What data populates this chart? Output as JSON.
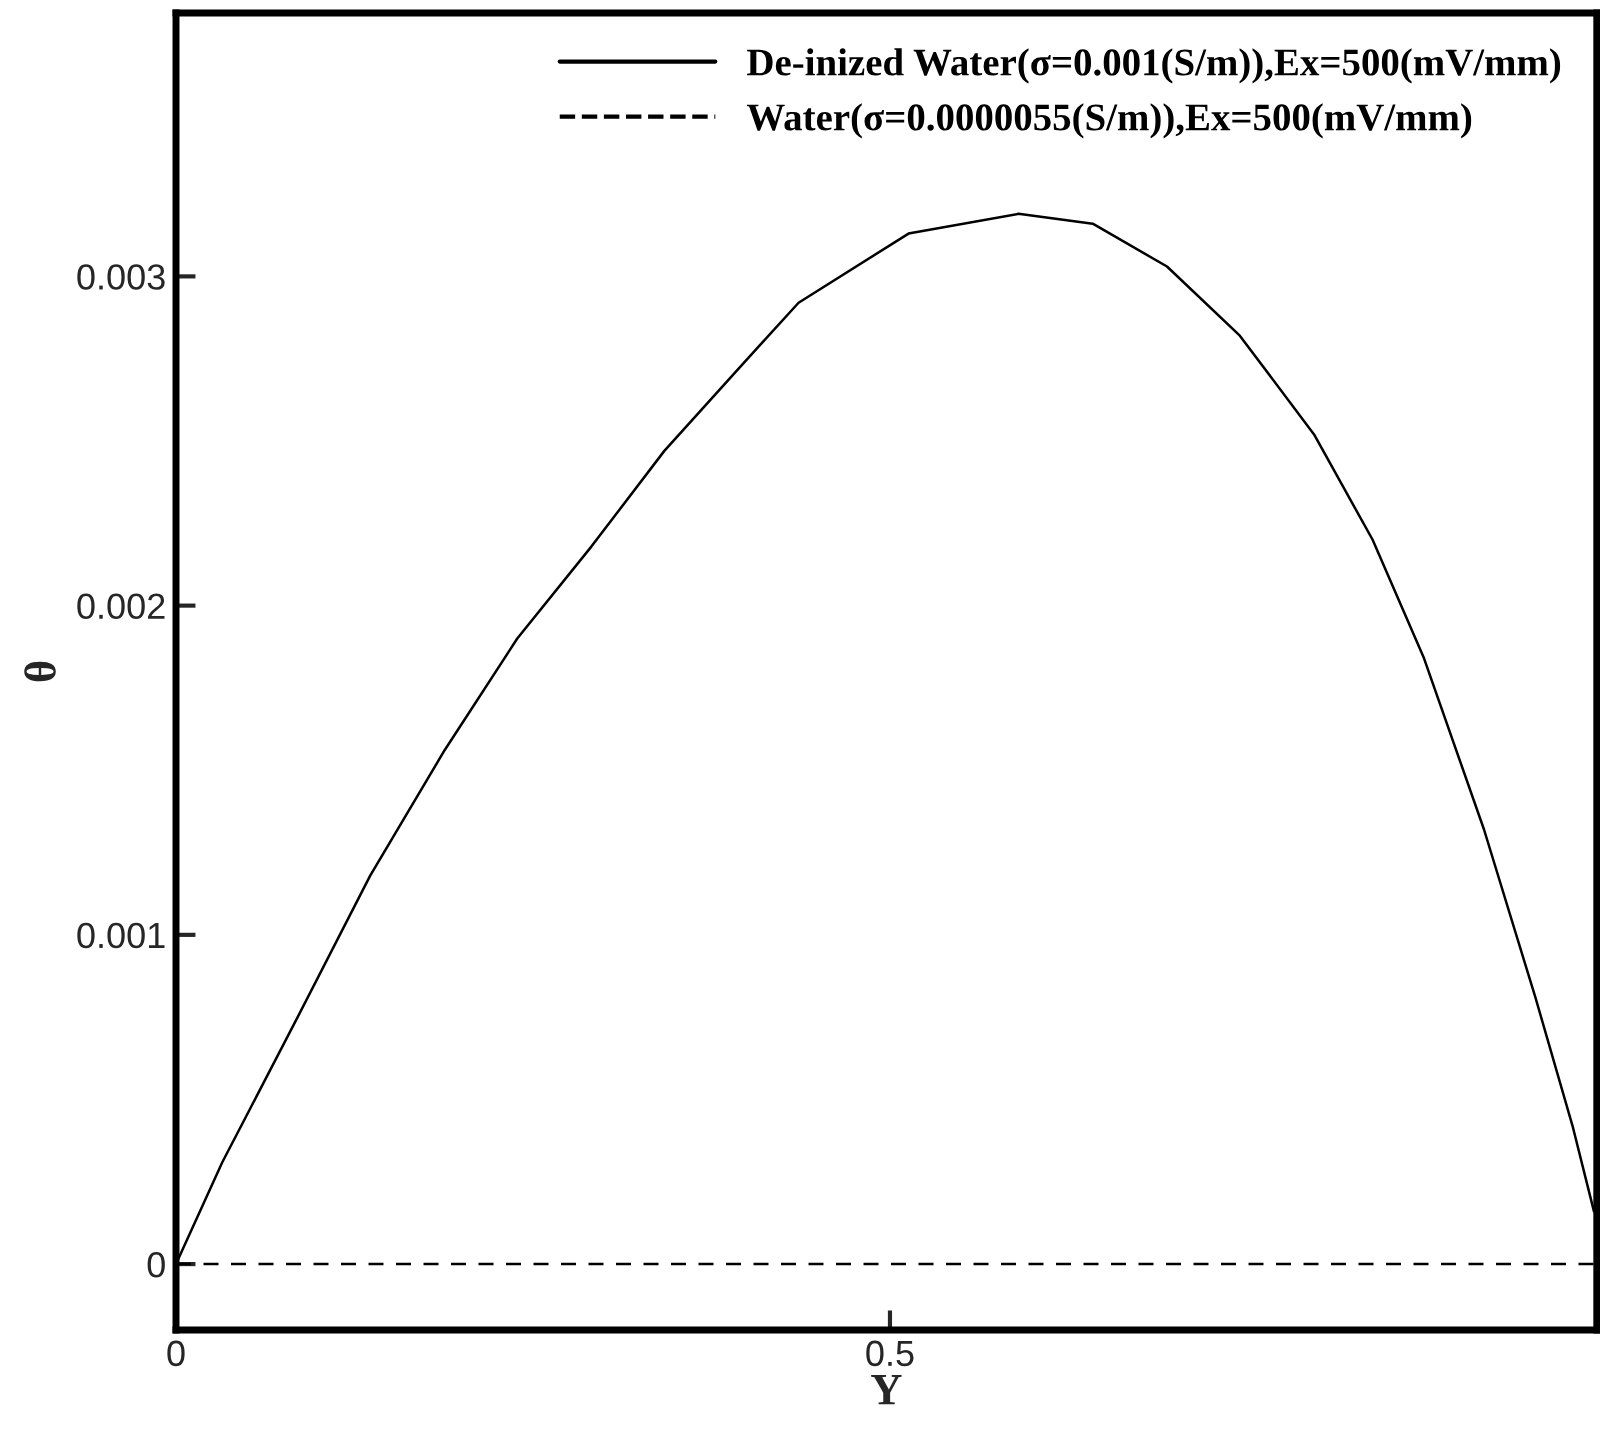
{
  "chart_data": {
    "type": "line",
    "xlabel": "Y",
    "ylabel": "θ",
    "xlim": [
      0,
      0.995
    ],
    "ylim": [
      -0.0002,
      0.0038
    ],
    "xticks": [
      0,
      0.5
    ],
    "yticks": [
      0,
      0.001,
      0.002,
      0.003
    ],
    "grid": false,
    "legend": "top right",
    "marker": "none",
    "series": [
      {
        "name": "De-inized Water(σ=0.001(S/m)),Ex=500(mV/mm)",
        "color": "#000000",
        "line_style": "solid",
        "x": [
          0,
          0.0325,
          0.084,
          0.136,
          0.188,
          0.239,
          0.291,
          0.342,
          0.394,
          0.436,
          0.513,
          0.59,
          0.642,
          0.694,
          0.745,
          0.797,
          0.838,
          0.874,
          0.916,
          0.952,
          0.978,
          0.993
        ],
        "values": [
          0,
          0.00031,
          0.00074,
          0.00118,
          0.00156,
          0.0019,
          0.00218,
          0.00247,
          0.00272,
          0.00292,
          0.00313,
          0.00319,
          0.00316,
          0.00303,
          0.00282,
          0.00252,
          0.0022,
          0.00184,
          0.00132,
          0.00081,
          0.00042,
          0.00016
        ]
      },
      {
        "name": "Water(σ=0.0000055(S/m)),Ex=500(mV/mm)",
        "color": "#000000",
        "line_style": "dashed",
        "x": [
          0,
          0.25,
          0.5,
          0.75,
          0.993
        ],
        "values": [
          0,
          0,
          0,
          0,
          0
        ]
      }
    ]
  }
}
